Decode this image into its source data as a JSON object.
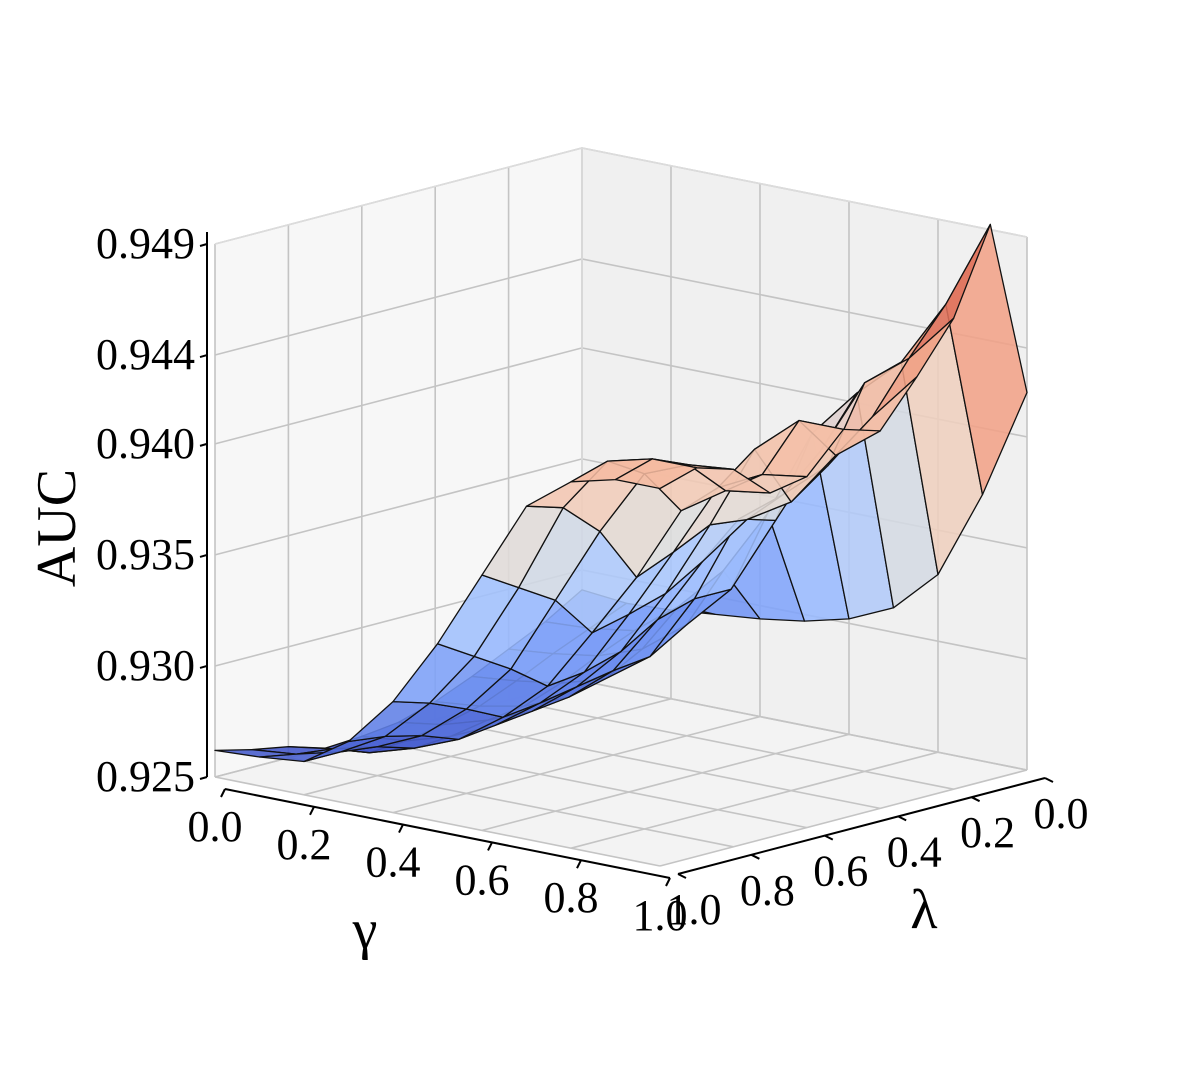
{
  "chart_data": {
    "type": "surface3d",
    "colormap": "coolwarm",
    "zlabel": "AUC",
    "xlabel": "γ",
    "ylabel": "λ",
    "x": [
      0.0,
      0.1,
      0.2,
      0.3,
      0.4,
      0.5,
      0.6,
      0.7,
      0.8,
      0.9,
      1.0
    ],
    "y": [
      0.0,
      0.1,
      0.2,
      0.3,
      0.4,
      0.5,
      0.6,
      0.7,
      0.8,
      0.9,
      1.0
    ],
    "x_ticks": [
      "0.0",
      "0.2",
      "0.4",
      "0.6",
      "0.8",
      "1.0"
    ],
    "y_ticks": [
      "0.0",
      "0.2",
      "0.4",
      "0.6",
      "0.8",
      "1.0"
    ],
    "z_ticks": [
      "0.925",
      "0.930",
      "0.935",
      "0.940",
      "0.944",
      "0.949"
    ],
    "xlim": [
      0.0,
      1.0
    ],
    "ylim": [
      0.0,
      1.0
    ],
    "zlim": [
      0.925,
      0.949
    ],
    "grid": true,
    "z": [
      [
        0.9291,
        0.9289,
        0.929,
        0.9292,
        0.9294,
        0.9297,
        0.9302,
        0.9311,
        0.933,
        0.937,
        0.942
      ],
      [
        0.9281,
        0.9282,
        0.9285,
        0.93,
        0.932,
        0.935,
        0.939,
        0.9412,
        0.943,
        0.946,
        0.95
      ],
      [
        0.9273,
        0.9275,
        0.9278,
        0.9285,
        0.93,
        0.932,
        0.9355,
        0.939,
        0.9425,
        0.944,
        0.9462
      ],
      [
        0.9265,
        0.9267,
        0.927,
        0.9276,
        0.929,
        0.932,
        0.936,
        0.9375,
        0.9392,
        0.9418,
        0.944
      ],
      [
        0.9258,
        0.926,
        0.9264,
        0.9272,
        0.9288,
        0.9315,
        0.9345,
        0.9368,
        0.938,
        0.9405,
        0.942
      ],
      [
        0.9253,
        0.9256,
        0.9262,
        0.927,
        0.9285,
        0.9305,
        0.9335,
        0.937,
        0.9408,
        0.9425,
        0.9425
      ],
      [
        0.9251,
        0.9253,
        0.9259,
        0.9268,
        0.9282,
        0.93,
        0.933,
        0.9362,
        0.9395,
        0.9405,
        0.9408
      ],
      [
        0.925,
        0.9252,
        0.9258,
        0.9266,
        0.928,
        0.9298,
        0.9326,
        0.9355,
        0.9389,
        0.9402,
        0.9405
      ],
      [
        0.9255,
        0.9258,
        0.9263,
        0.9272,
        0.9288,
        0.931,
        0.9345,
        0.938,
        0.941,
        0.9418,
        0.942
      ],
      [
        0.9258,
        0.926,
        0.9265,
        0.9276,
        0.9295,
        0.932,
        0.9355,
        0.9395,
        0.942,
        0.9425,
        0.9425
      ],
      [
        0.9262,
        0.9263,
        0.9265,
        0.9278,
        0.93,
        0.933,
        0.9365,
        0.94,
        0.9415,
        0.942,
        0.942
      ]
    ]
  }
}
